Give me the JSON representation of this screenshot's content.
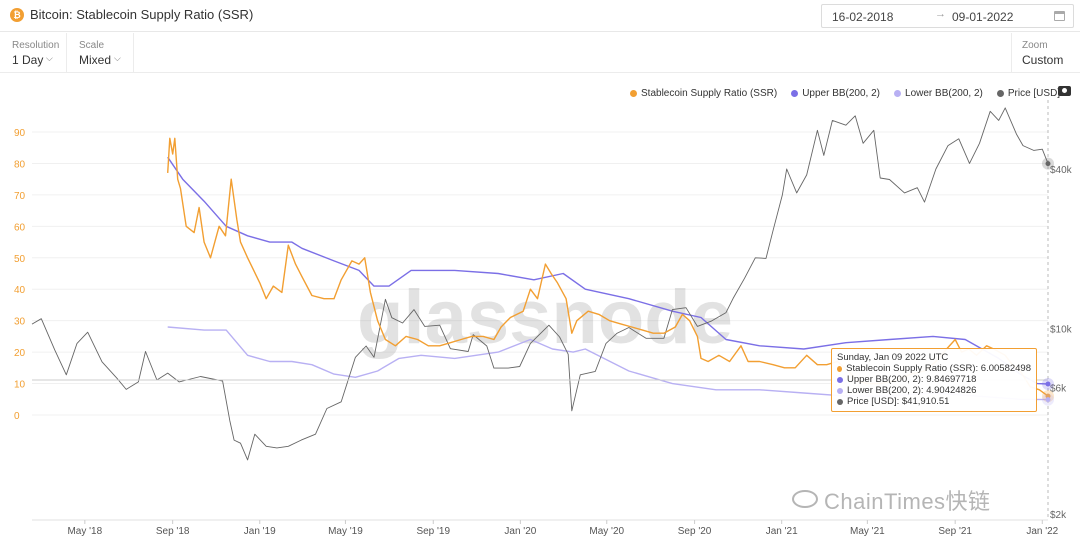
{
  "header": {
    "coin_symbol": "₿",
    "title": "Bitcoin: Stablecoin Supply Ratio (SSR)",
    "date_start": "16-02-2018",
    "date_arrow": "→",
    "date_end": "09-01-2022"
  },
  "toolbar": {
    "resolution_label": "Resolution",
    "resolution_value": "1 Day",
    "scale_label": "Scale",
    "scale_value": "Mixed",
    "zoom_label": "Zoom",
    "zoom_value": "Custom"
  },
  "legend": [
    {
      "label": "Stablecoin Supply Ratio (SSR)",
      "color": "#f29f32"
    },
    {
      "label": "Upper BB(200, 2)",
      "color": "#7b6fe6"
    },
    {
      "label": "Lower BB(200, 2)",
      "color": "#b8b0f3"
    },
    {
      "label": "Price [USD]",
      "color": "#666666"
    }
  ],
  "tooltip": {
    "date": "Sunday, Jan 09 2022 UTC",
    "rows": [
      {
        "text": "Stablecoin Supply Ratio (SSR): 6.00582498",
        "color": "#f29f32"
      },
      {
        "text": "Upper BB(200, 2): 9.84697718",
        "color": "#7b6fe6"
      },
      {
        "text": "Lower BB(200, 2): 4.90424826",
        "color": "#b8b0f3"
      },
      {
        "text": "Price [USD]: $41,910.51",
        "color": "#666666"
      }
    ]
  },
  "watermark": {
    "big": "glassnode",
    "small": "ChainTimes快链"
  },
  "chart_data": {
    "type": "line",
    "y_left_ticks": [
      "0",
      "10",
      "20",
      "30",
      "40",
      "50",
      "60",
      "70",
      "80",
      "90"
    ],
    "y_left_range": [
      0,
      95
    ],
    "y_right_ticks": [
      "$2k",
      "$6k",
      "$10k",
      "$40k"
    ],
    "y_right_scale": "log",
    "y_right_range": [
      2000,
      80000
    ],
    "x_ticks": [
      "May '18",
      "Sep '18",
      "Jan '19",
      "May '19",
      "Sep '19",
      "Jan '20",
      "May '20",
      "Sep '20",
      "Jan '21",
      "May '21",
      "Sep '21",
      "Jan '22"
    ],
    "x_range": [
      "2018-02-16",
      "2022-01-09"
    ],
    "grid": "horizontal",
    "series": [
      {
        "name": "Stablecoin Supply Ratio (SSR)",
        "axis": "left",
        "color": "#f29f32",
        "points": [
          [
            "2018-08-25",
            77
          ],
          [
            "2018-08-28",
            88
          ],
          [
            "2018-09-01",
            83
          ],
          [
            "2018-09-04",
            88
          ],
          [
            "2018-09-08",
            75
          ],
          [
            "2018-09-12",
            72
          ],
          [
            "2018-09-20",
            60
          ],
          [
            "2018-10-01",
            58
          ],
          [
            "2018-10-08",
            66
          ],
          [
            "2018-10-15",
            55
          ],
          [
            "2018-10-24",
            50
          ],
          [
            "2018-11-05",
            60
          ],
          [
            "2018-11-14",
            57
          ],
          [
            "2018-11-22",
            75
          ],
          [
            "2018-11-30",
            62
          ],
          [
            "2018-12-05",
            55
          ],
          [
            "2018-12-15",
            50
          ],
          [
            "2019-01-01",
            42
          ],
          [
            "2019-01-10",
            37
          ],
          [
            "2019-01-20",
            41
          ],
          [
            "2019-02-01",
            39
          ],
          [
            "2019-02-10",
            54
          ],
          [
            "2019-02-20",
            48
          ],
          [
            "2019-03-01",
            44
          ],
          [
            "2019-03-15",
            38
          ],
          [
            "2019-04-01",
            37
          ],
          [
            "2019-04-15",
            37
          ],
          [
            "2019-04-25",
            43
          ],
          [
            "2019-05-10",
            49
          ],
          [
            "2019-05-20",
            48
          ],
          [
            "2019-05-28",
            50
          ],
          [
            "2019-06-05",
            39
          ],
          [
            "2019-06-15",
            30
          ],
          [
            "2019-06-26",
            24
          ],
          [
            "2019-07-10",
            22
          ],
          [
            "2019-07-25",
            25
          ],
          [
            "2019-08-10",
            24
          ],
          [
            "2019-08-25",
            22
          ],
          [
            "2019-09-10",
            22
          ],
          [
            "2019-09-25",
            23
          ],
          [
            "2019-10-10",
            24
          ],
          [
            "2019-10-25",
            25
          ],
          [
            "2019-11-10",
            25
          ],
          [
            "2019-11-25",
            24
          ],
          [
            "2019-12-05",
            28
          ],
          [
            "2019-12-18",
            31
          ],
          [
            "2020-01-05",
            33
          ],
          [
            "2020-01-15",
            40
          ],
          [
            "2020-01-25",
            37
          ],
          [
            "2020-02-05",
            48
          ],
          [
            "2020-02-13",
            45
          ],
          [
            "2020-02-22",
            42
          ],
          [
            "2020-03-05",
            37
          ],
          [
            "2020-03-13",
            26
          ],
          [
            "2020-03-20",
            30
          ],
          [
            "2020-04-05",
            33
          ],
          [
            "2020-04-20",
            32
          ],
          [
            "2020-05-05",
            30
          ],
          [
            "2020-05-20",
            29
          ],
          [
            "2020-06-05",
            28
          ],
          [
            "2020-06-20",
            27
          ],
          [
            "2020-07-05",
            26
          ],
          [
            "2020-07-20",
            26
          ],
          [
            "2020-08-05",
            28
          ],
          [
            "2020-08-15",
            32
          ],
          [
            "2020-08-25",
            30
          ],
          [
            "2020-09-05",
            25
          ],
          [
            "2020-09-10",
            18
          ],
          [
            "2020-09-20",
            17
          ],
          [
            "2020-10-05",
            19
          ],
          [
            "2020-10-20",
            17
          ],
          [
            "2020-11-05",
            22
          ],
          [
            "2020-11-15",
            17
          ],
          [
            "2020-12-01",
            17
          ],
          [
            "2020-12-20",
            16
          ],
          [
            "2021-01-05",
            15
          ],
          [
            "2021-01-20",
            15
          ],
          [
            "2021-02-05",
            19
          ],
          [
            "2021-02-20",
            16
          ],
          [
            "2021-03-05",
            16
          ],
          [
            "2021-03-20",
            17
          ],
          [
            "2021-04-05",
            14
          ],
          [
            "2021-04-15",
            11
          ],
          [
            "2021-05-01",
            10
          ],
          [
            "2021-05-20",
            10
          ],
          [
            "2021-06-10",
            11
          ],
          [
            "2021-07-01",
            13
          ],
          [
            "2021-07-20",
            14
          ],
          [
            "2021-08-05",
            17
          ],
          [
            "2021-08-20",
            21
          ],
          [
            "2021-09-01",
            24
          ],
          [
            "2021-09-10",
            20
          ],
          [
            "2021-09-20",
            21
          ],
          [
            "2021-10-01",
            19
          ],
          [
            "2021-10-15",
            22
          ],
          [
            "2021-10-25",
            21
          ],
          [
            "2021-11-10",
            19
          ],
          [
            "2021-11-20",
            16
          ],
          [
            "2021-12-01",
            14
          ],
          [
            "2021-12-15",
            9
          ],
          [
            "2021-12-28",
            8
          ],
          [
            "2022-01-09",
            6.0
          ]
        ]
      },
      {
        "name": "Upper BB(200, 2)",
        "axis": "left",
        "color": "#7b6fe6",
        "points": [
          [
            "2018-08-25",
            82
          ],
          [
            "2018-09-15",
            75
          ],
          [
            "2018-10-15",
            68
          ],
          [
            "2018-11-15",
            60
          ],
          [
            "2018-12-15",
            57
          ],
          [
            "2019-01-15",
            55
          ],
          [
            "2019-02-15",
            55
          ],
          [
            "2019-03-01",
            53
          ],
          [
            "2019-04-15",
            49
          ],
          [
            "2019-05-20",
            46
          ],
          [
            "2019-06-10",
            41
          ],
          [
            "2019-07-01",
            41
          ],
          [
            "2019-08-01",
            46
          ],
          [
            "2019-10-01",
            46
          ],
          [
            "2019-12-01",
            45
          ],
          [
            "2020-01-20",
            43
          ],
          [
            "2020-03-01",
            45
          ],
          [
            "2020-04-01",
            40
          ],
          [
            "2020-06-01",
            37
          ],
          [
            "2020-08-01",
            33
          ],
          [
            "2020-09-10",
            31
          ],
          [
            "2020-10-15",
            24
          ],
          [
            "2020-12-01",
            22
          ],
          [
            "2021-02-01",
            21
          ],
          [
            "2021-04-01",
            23
          ],
          [
            "2021-06-01",
            24
          ],
          [
            "2021-08-01",
            25
          ],
          [
            "2021-09-15",
            24
          ],
          [
            "2021-11-01",
            18
          ],
          [
            "2021-12-01",
            13
          ],
          [
            "2021-12-25",
            10
          ],
          [
            "2022-01-09",
            9.85
          ]
        ]
      },
      {
        "name": "Lower BB(200, 2)",
        "axis": "left",
        "color": "#b8b0f3",
        "points": [
          [
            "2018-08-25",
            28
          ],
          [
            "2018-10-15",
            27
          ],
          [
            "2018-11-15",
            27
          ],
          [
            "2018-12-15",
            19
          ],
          [
            "2019-01-15",
            17
          ],
          [
            "2019-02-15",
            17
          ],
          [
            "2019-03-15",
            16
          ],
          [
            "2019-04-15",
            13
          ],
          [
            "2019-05-15",
            12
          ],
          [
            "2019-06-15",
            14
          ],
          [
            "2019-07-15",
            18
          ],
          [
            "2019-08-15",
            19
          ],
          [
            "2019-10-01",
            18
          ],
          [
            "2019-12-01",
            20
          ],
          [
            "2020-01-15",
            24
          ],
          [
            "2020-02-15",
            21
          ],
          [
            "2020-03-15",
            20
          ],
          [
            "2020-04-01",
            21
          ],
          [
            "2020-06-01",
            14
          ],
          [
            "2020-08-01",
            10
          ],
          [
            "2020-10-01",
            8
          ],
          [
            "2020-12-01",
            8
          ],
          [
            "2021-02-01",
            7
          ],
          [
            "2021-04-01",
            6
          ],
          [
            "2021-06-01",
            6
          ],
          [
            "2021-08-01",
            7
          ],
          [
            "2021-10-01",
            6
          ],
          [
            "2021-12-01",
            5
          ],
          [
            "2022-01-09",
            4.9
          ]
        ]
      },
      {
        "name": "Price [USD]",
        "axis": "right",
        "color": "#666666",
        "points": [
          [
            "2018-02-16",
            10400
          ],
          [
            "2018-03-01",
            10900
          ],
          [
            "2018-03-20",
            8300
          ],
          [
            "2018-04-05",
            6700
          ],
          [
            "2018-04-20",
            8800
          ],
          [
            "2018-05-05",
            9700
          ],
          [
            "2018-05-25",
            7500
          ],
          [
            "2018-06-15",
            6500
          ],
          [
            "2018-06-28",
            5900
          ],
          [
            "2018-07-15",
            6300
          ],
          [
            "2018-07-25",
            8200
          ],
          [
            "2018-08-10",
            6400
          ],
          [
            "2018-08-25",
            6800
          ],
          [
            "2018-09-10",
            6300
          ],
          [
            "2018-10-10",
            6600
          ],
          [
            "2018-11-10",
            6350
          ],
          [
            "2018-11-20",
            4500
          ],
          [
            "2018-11-26",
            3800
          ],
          [
            "2018-12-05",
            3700
          ],
          [
            "2018-12-15",
            3200
          ],
          [
            "2018-12-25",
            4000
          ],
          [
            "2019-01-10",
            3600
          ],
          [
            "2019-01-25",
            3550
          ],
          [
            "2019-02-10",
            3600
          ],
          [
            "2019-02-28",
            3800
          ],
          [
            "2019-03-20",
            4000
          ],
          [
            "2019-04-05",
            5000
          ],
          [
            "2019-04-25",
            5300
          ],
          [
            "2019-05-15",
            7800
          ],
          [
            "2019-05-30",
            8600
          ],
          [
            "2019-06-10",
            7800
          ],
          [
            "2019-06-26",
            12900
          ],
          [
            "2019-07-05",
            11000
          ],
          [
            "2019-07-20",
            10500
          ],
          [
            "2019-08-05",
            11800
          ],
          [
            "2019-08-20",
            10200
          ],
          [
            "2019-09-10",
            10300
          ],
          [
            "2019-09-25",
            8400
          ],
          [
            "2019-10-20",
            8200
          ],
          [
            "2019-10-27",
            9500
          ],
          [
            "2019-11-15",
            8600
          ],
          [
            "2019-11-25",
            7100
          ],
          [
            "2019-12-15",
            7100
          ],
          [
            "2019-12-31",
            7200
          ],
          [
            "2020-01-15",
            8800
          ],
          [
            "2020-02-10",
            10300
          ],
          [
            "2020-02-25",
            9300
          ],
          [
            "2020-03-08",
            8000
          ],
          [
            "2020-03-13",
            4900
          ],
          [
            "2020-03-25",
            6700
          ],
          [
            "2020-04-15",
            6900
          ],
          [
            "2020-04-30",
            8800
          ],
          [
            "2020-05-15",
            9600
          ],
          [
            "2020-06-01",
            10100
          ],
          [
            "2020-06-25",
            9200
          ],
          [
            "2020-07-20",
            9200
          ],
          [
            "2020-08-01",
            11800
          ],
          [
            "2020-08-20",
            12000
          ],
          [
            "2020-09-05",
            10200
          ],
          [
            "2020-09-25",
            10700
          ],
          [
            "2020-10-15",
            11500
          ],
          [
            "2020-10-25",
            13000
          ],
          [
            "2020-11-10",
            15500
          ],
          [
            "2020-11-25",
            18500
          ],
          [
            "2020-12-10",
            18400
          ],
          [
            "2020-12-20",
            23500
          ],
          [
            "2021-01-02",
            32000
          ],
          [
            "2021-01-08",
            40000
          ],
          [
            "2021-01-22",
            32500
          ],
          [
            "2021-02-05",
            38000
          ],
          [
            "2021-02-20",
            56000
          ],
          [
            "2021-03-01",
            45000
          ],
          [
            "2021-03-13",
            61000
          ],
          [
            "2021-04-01",
            58500
          ],
          [
            "2021-04-14",
            63500
          ],
          [
            "2021-04-25",
            50000
          ],
          [
            "2021-05-10",
            56000
          ],
          [
            "2021-05-19",
            37000
          ],
          [
            "2021-06-01",
            36500
          ],
          [
            "2021-06-22",
            32500
          ],
          [
            "2021-07-10",
            34000
          ],
          [
            "2021-07-20",
            30000
          ],
          [
            "2021-08-05",
            40000
          ],
          [
            "2021-08-22",
            49000
          ],
          [
            "2021-09-06",
            52000
          ],
          [
            "2021-09-21",
            42000
          ],
          [
            "2021-10-05",
            50000
          ],
          [
            "2021-10-20",
            66000
          ],
          [
            "2021-11-01",
            61000
          ],
          [
            "2021-11-10",
            68000
          ],
          [
            "2021-11-26",
            54000
          ],
          [
            "2021-12-05",
            49000
          ],
          [
            "2021-12-20",
            47000
          ],
          [
            "2022-01-01",
            47500
          ],
          [
            "2022-01-09",
            41910
          ]
        ]
      }
    ]
  }
}
